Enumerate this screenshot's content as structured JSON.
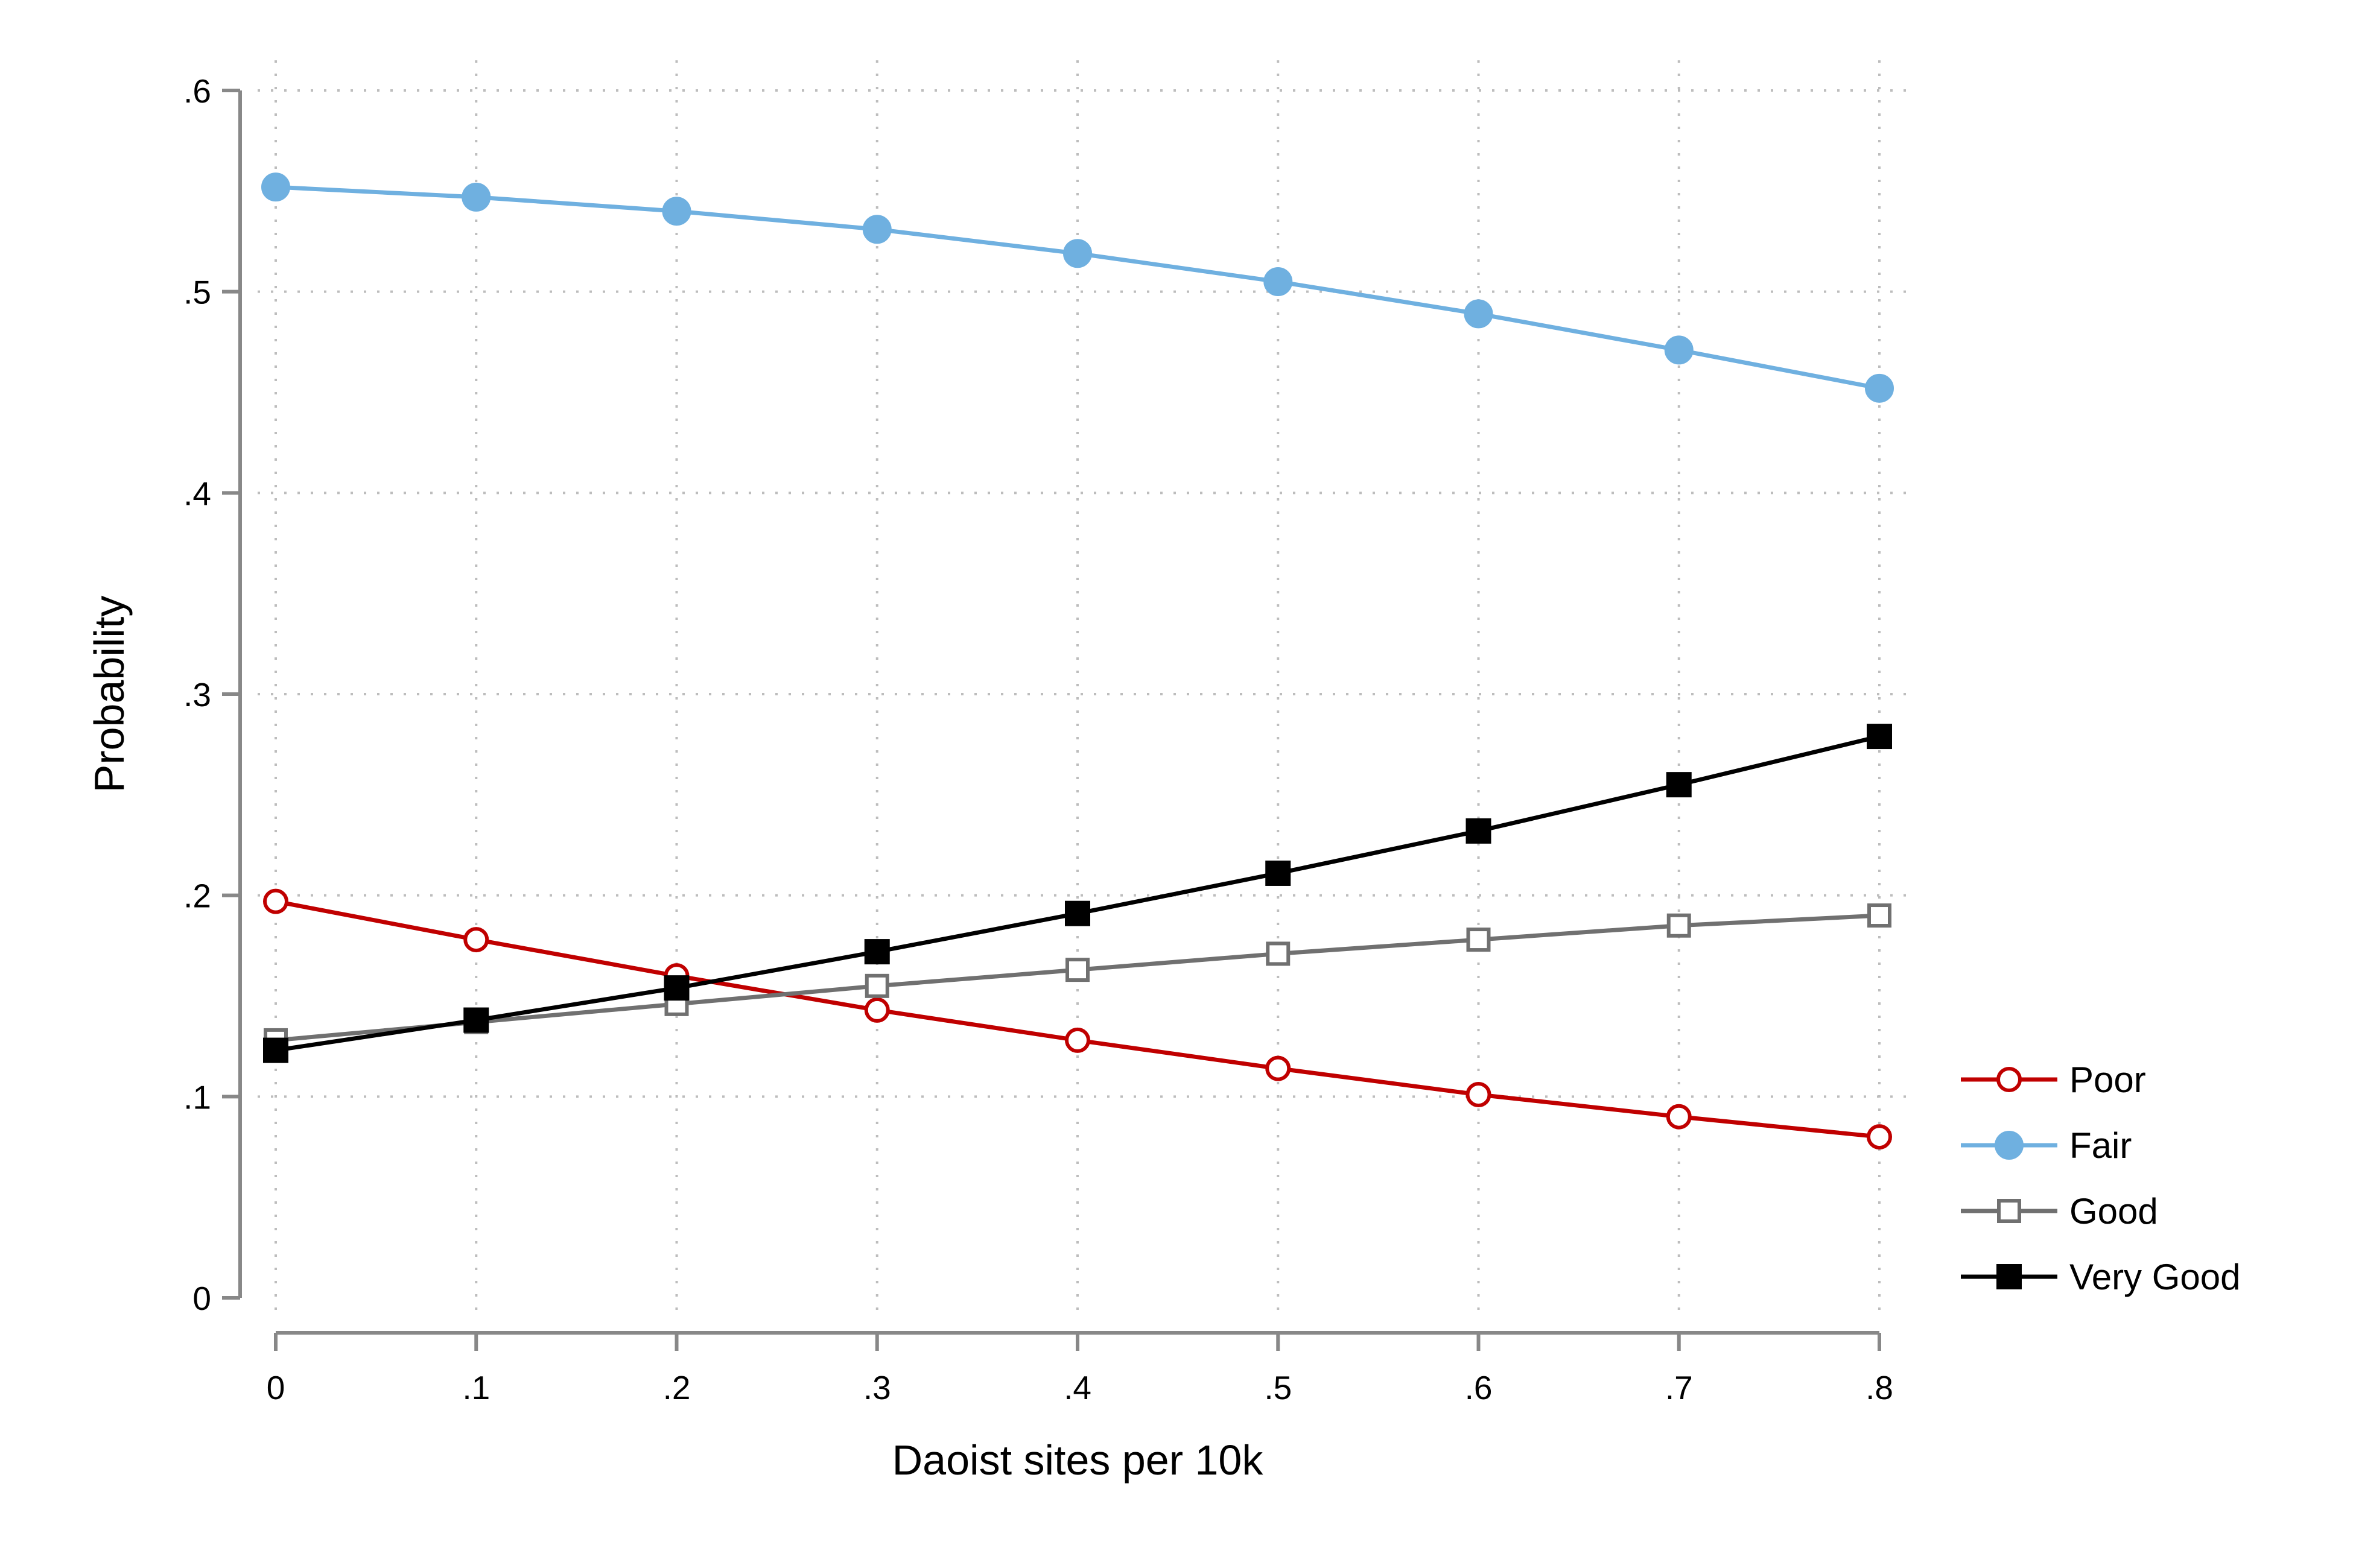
{
  "chart_data": {
    "type": "line",
    "title": "",
    "xlabel": "Daoist sites per 10k",
    "ylabel": "Probability",
    "x": [
      0,
      0.1,
      0.2,
      0.3,
      0.4,
      0.5,
      0.6,
      0.7,
      0.8
    ],
    "x_tick_labels": [
      "0",
      ".1",
      ".2",
      ".3",
      ".4",
      ".5",
      ".6",
      ".7",
      ".8"
    ],
    "y_ticks": [
      0,
      0.1,
      0.2,
      0.3,
      0.4,
      0.5,
      0.6
    ],
    "y_tick_labels": [
      "0",
      ".1",
      ".2",
      ".3",
      ".4",
      ".5",
      ".6"
    ],
    "xlim": [
      0,
      0.8
    ],
    "ylim": [
      0,
      0.6
    ],
    "grid": true,
    "legend_position": "right",
    "series": [
      {
        "name": "Poor",
        "color": "#c00000",
        "marker": "hollow-circle",
        "values": [
          0.197,
          0.178,
          0.16,
          0.143,
          0.128,
          0.114,
          0.101,
          0.09,
          0.08
        ]
      },
      {
        "name": "Fair",
        "color": "#6fb0e0",
        "marker": "filled-circle",
        "values": [
          0.552,
          0.547,
          0.54,
          0.531,
          0.519,
          0.505,
          0.489,
          0.471,
          0.452
        ]
      },
      {
        "name": "Good",
        "color": "#707070",
        "marker": "hollow-square",
        "values": [
          0.128,
          0.137,
          0.146,
          0.155,
          0.163,
          0.171,
          0.178,
          0.185,
          0.19
        ]
      },
      {
        "name": "Very Good",
        "color": "#000000",
        "marker": "filled-square",
        "values": [
          0.123,
          0.138,
          0.154,
          0.172,
          0.191,
          0.211,
          0.232,
          0.255,
          0.279
        ]
      }
    ]
  }
}
